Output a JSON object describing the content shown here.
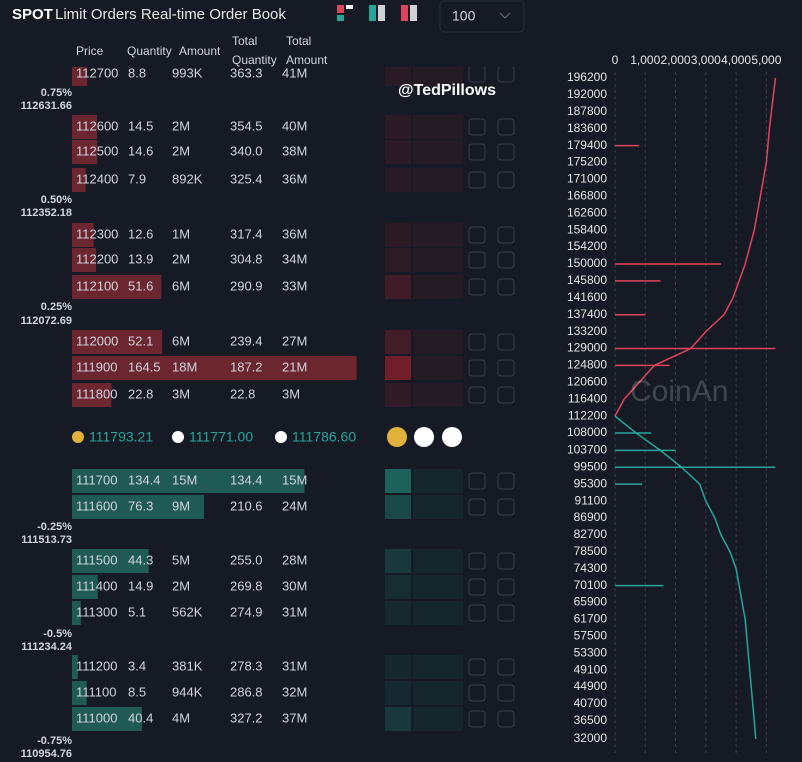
{
  "header": {
    "brand": "SPOT",
    "title": "Limit Orders Real-time Order Book",
    "depth_select": "100"
  },
  "columns": {
    "price": "Price",
    "quantity": "Quantity",
    "amount": "Amount",
    "total_quantity": [
      "Total",
      "Quantity"
    ],
    "total_amount": [
      "Total",
      "Amount"
    ]
  },
  "asks": [
    {
      "price": "112700",
      "quantity": "8.8",
      "amount": "993K",
      "total_quantity": "363.3",
      "total_amount": "41M"
    },
    {
      "price": "112600",
      "quantity": "14.5",
      "amount": "2M",
      "total_quantity": "354.5",
      "total_amount": "40M"
    },
    {
      "price": "112500",
      "quantity": "14.6",
      "amount": "2M",
      "total_quantity": "340.0",
      "total_amount": "38M"
    },
    {
      "price": "112400",
      "quantity": "7.9",
      "amount": "892K",
      "total_quantity": "325.4",
      "total_amount": "36M"
    },
    {
      "price": "112300",
      "quantity": "12.6",
      "amount": "1M",
      "total_quantity": "317.4",
      "total_amount": "36M"
    },
    {
      "price": "112200",
      "quantity": "13.9",
      "amount": "2M",
      "total_quantity": "304.8",
      "total_amount": "34M"
    },
    {
      "price": "112100",
      "quantity": "51.6",
      "amount": "6M",
      "total_quantity": "290.9",
      "total_amount": "33M"
    },
    {
      "price": "112000",
      "quantity": "52.1",
      "amount": "6M",
      "total_quantity": "239.4",
      "total_amount": "27M"
    },
    {
      "price": "111900",
      "quantity": "164.5",
      "amount": "18M",
      "total_quantity": "187.2",
      "total_amount": "21M"
    },
    {
      "price": "111800",
      "quantity": "22.8",
      "amount": "3M",
      "total_quantity": "22.8",
      "total_amount": "3M"
    }
  ],
  "ask_markers": [
    {
      "percent": "0.75%",
      "price": "112631.66"
    },
    {
      "percent": "0.50%",
      "price": "112352.18"
    },
    {
      "percent": "0.25%",
      "price": "112072.69"
    }
  ],
  "mid_prices": [
    "111793.21",
    "111771.00",
    "111786.60"
  ],
  "bids": [
    {
      "price": "111700",
      "quantity": "134.4",
      "amount": "15M",
      "total_quantity": "134.4",
      "total_amount": "15M"
    },
    {
      "price": "111600",
      "quantity": "76.3",
      "amount": "9M",
      "total_quantity": "210.6",
      "total_amount": "24M"
    },
    {
      "price": "111500",
      "quantity": "44.3",
      "amount": "5M",
      "total_quantity": "255.0",
      "total_amount": "28M"
    },
    {
      "price": "111400",
      "quantity": "14.9",
      "amount": "2M",
      "total_quantity": "269.8",
      "total_amount": "30M"
    },
    {
      "price": "111300",
      "quantity": "5.1",
      "amount": "562K",
      "total_quantity": "274.9",
      "total_amount": "31M"
    },
    {
      "price": "111200",
      "quantity": "3.4",
      "amount": "381K",
      "total_quantity": "278.3",
      "total_amount": "31M"
    },
    {
      "price": "111100",
      "quantity": "8.5",
      "amount": "944K",
      "total_quantity": "286.8",
      "total_amount": "32M"
    },
    {
      "price": "111000",
      "quantity": "40.4",
      "amount": "4M",
      "total_quantity": "327.2",
      "total_amount": "37M"
    }
  ],
  "bid_markers": [
    {
      "percent": "-0.25%",
      "price": "111513.73"
    },
    {
      "percent": "-0.5%",
      "price": "111234.24"
    },
    {
      "percent": "-0.75%",
      "price": "110954.76"
    }
  ],
  "watermarks": [
    "@TedPillows",
    "CoinAn"
  ],
  "depth_chart": {
    "xlim": [
      0,
      5450
    ],
    "xticks": [
      0,
      {
        "value": 1000,
        "label": "1,000"
      },
      {
        "value": 2000,
        "label": "2,000"
      },
      {
        "value": 3000,
        "label": "3,000"
      },
      {
        "value": 4000,
        "label": "4,000"
      },
      {
        "value": 5000,
        "label": "5,000"
      }
    ],
    "ylim": [
      32000,
      196200
    ],
    "yticks": [
      196200,
      192000,
      187800,
      183600,
      179400,
      175200,
      171000,
      166800,
      162600,
      158400,
      154200,
      150000,
      145800,
      141600,
      137400,
      133200,
      129000,
      124800,
      120600,
      116400,
      112200,
      108000,
      103700,
      99500,
      95300,
      91100,
      86900,
      82700,
      78500,
      74300,
      70100,
      65900,
      61700,
      57500,
      53300,
      49100,
      44900,
      40700,
      36500,
      32000
    ],
    "asks_curve": {
      "color": "#e0445a",
      "price": [
        112200,
        116400,
        120600,
        124800,
        129000,
        133200,
        137400,
        141600,
        145800,
        150000,
        158400,
        166800,
        175200,
        183600,
        196200
      ],
      "quantity": [
        0,
        300,
        800,
        1300,
        2500,
        3000,
        3600,
        3900,
        4100,
        4300,
        4600,
        4800,
        5000,
        5100,
        5300
      ]
    },
    "bids_curve": {
      "color": "#26a69a",
      "price": [
        112200,
        108000,
        103700,
        99500,
        95300,
        91100,
        86900,
        82700,
        78500,
        74300,
        70100,
        65900,
        61700,
        53300,
        44900,
        36500,
        32000
      ],
      "quantity": [
        0,
        700,
        1500,
        2200,
        2800,
        3000,
        3300,
        3500,
        3800,
        4000,
        4100,
        4200,
        4300,
        4400,
        4500,
        4600,
        4650
      ]
    },
    "asks_bars": {
      "price": [
        129000,
        150000,
        179400,
        145800,
        137400,
        124800
      ],
      "quantity": [
        5300,
        3500,
        800,
        1500,
        1000,
        1800
      ]
    },
    "bids_bars": {
      "price": [
        99500,
        103700,
        108000,
        70100,
        95300
      ],
      "quantity": [
        5300,
        2000,
        1200,
        1600,
        900
      ]
    }
  }
}
